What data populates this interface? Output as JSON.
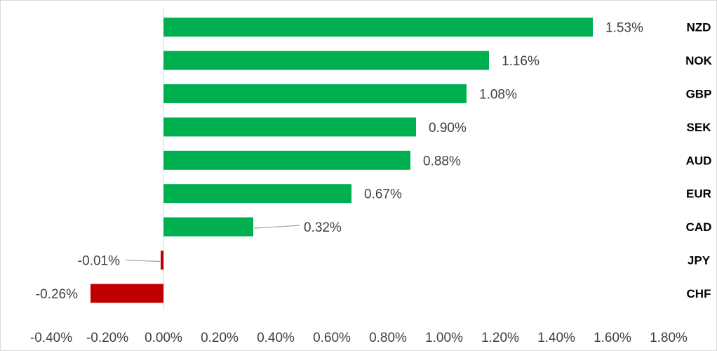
{
  "chart_data": {
    "type": "bar",
    "orientation": "horizontal",
    "categories": [
      "NZD",
      "NOK",
      "GBP",
      "SEK",
      "AUD",
      "EUR",
      "CAD",
      "JPY",
      "CHF"
    ],
    "values": [
      1.53,
      1.16,
      1.08,
      0.9,
      0.88,
      0.67,
      0.32,
      -0.01,
      -0.26
    ],
    "data_labels": [
      "1.53%",
      "1.16%",
      "1.08%",
      "0.90%",
      "0.88%",
      "0.67%",
      "0.32%",
      "-0.01%",
      "-0.26%"
    ],
    "x_ticks": [
      -0.4,
      -0.2,
      0.0,
      0.2,
      0.4,
      0.6,
      0.8,
      1.0,
      1.2,
      1.4,
      1.6,
      1.8
    ],
    "x_tick_labels": [
      "-0.40%",
      "-0.20%",
      "0.00%",
      "0.20%",
      "0.40%",
      "0.60%",
      "0.80%",
      "1.00%",
      "1.20%",
      "1.40%",
      "1.60%",
      "1.80%"
    ],
    "xlim": [
      -0.4,
      1.8
    ],
    "title": "",
    "xlabel": "",
    "ylabel": "",
    "grid": false,
    "legend": "none",
    "colors": {
      "positive": "#00b050",
      "negative": "#c00000",
      "axis": "#d9d9d9",
      "leader": "#a6a6a6"
    }
  }
}
